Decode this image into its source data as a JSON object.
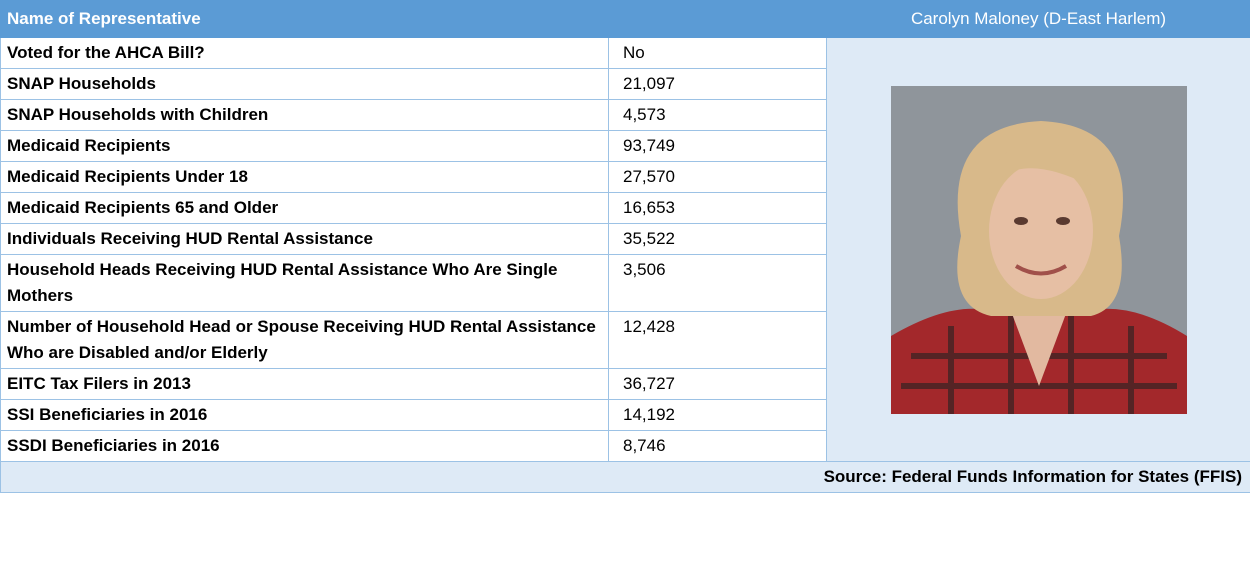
{
  "header": {
    "label": "Name of Representative",
    "value": "Carolyn Maloney (D-East Harlem)"
  },
  "table": {
    "rows": [
      [
        "Voted for the AHCA Bill?",
        "No"
      ],
      [
        "SNAP Households",
        "21,097"
      ],
      [
        "SNAP Households with Children",
        "4,573"
      ],
      [
        "Medicaid Recipients",
        "93,749"
      ],
      [
        "Medicaid Recipients Under 18",
        "27,570"
      ],
      [
        "Medicaid Recipients 65 and Older",
        "16,653"
      ],
      [
        "Individuals Receiving HUD Rental Assistance",
        "35,522"
      ],
      [
        "Household Heads Receiving HUD Rental Assistance Who Are Single Mothers",
        "3,506"
      ],
      [
        "Number of Household Head or Spouse Receiving HUD Rental Assistance Who are Disabled and/or Elderly",
        "12,428"
      ],
      [
        "EITC Tax Filers in 2013",
        "36,727"
      ],
      [
        "SSI Beneficiaries in 2016",
        "14,192"
      ],
      [
        "SSDI Beneficiaries in 2016",
        "8,746"
      ]
    ]
  },
  "source": "Source: Federal Funds Information for States (FFIS)"
}
